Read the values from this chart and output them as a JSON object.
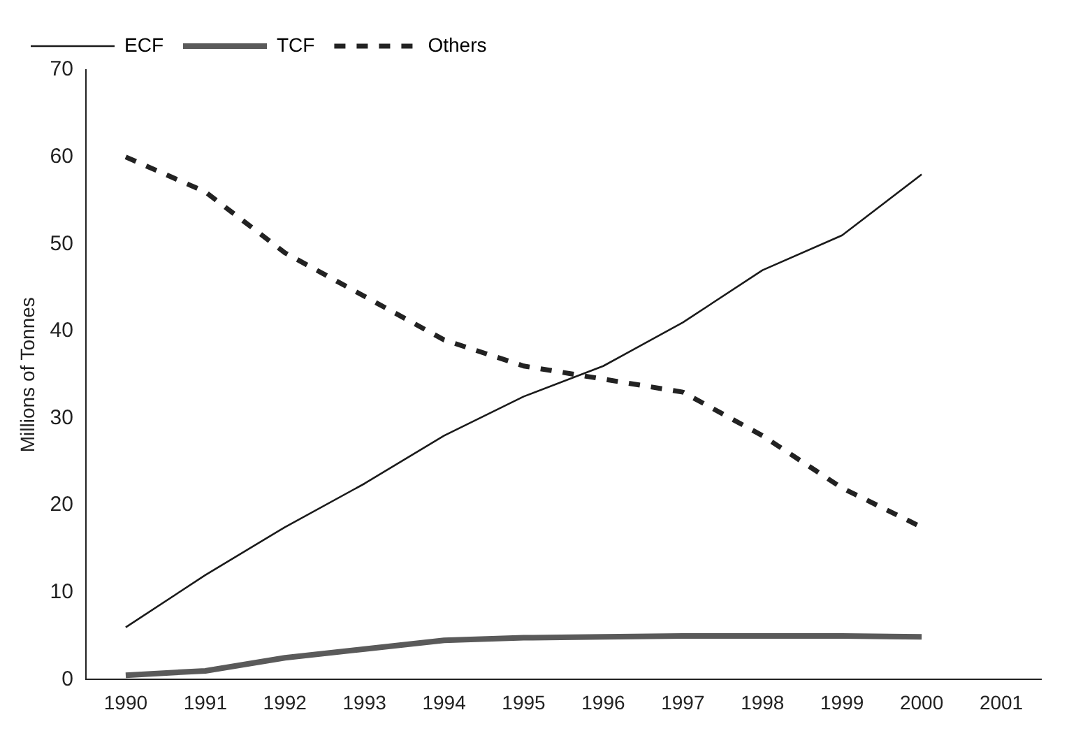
{
  "chart_data": {
    "type": "line",
    "ylabel": "Millions of Tonnes",
    "categories": [
      "1990",
      "1991",
      "1992",
      "1993",
      "1994",
      "1995",
      "1996",
      "1997",
      "1998",
      "1999",
      "2000",
      "2001"
    ],
    "ylim": [
      0,
      70
    ],
    "yticks": [
      0,
      10,
      20,
      30,
      40,
      50,
      60,
      70
    ],
    "grid": false,
    "legend": "top left",
    "marker": "none",
    "series": [
      {
        "name": "ECF",
        "color": "#1a1a1a",
        "line_style": "solid",
        "values": [
          6,
          12,
          17.5,
          22.5,
          28,
          32.5,
          36,
          41,
          47,
          51,
          58,
          null
        ]
      },
      {
        "name": "TCF",
        "color": "#5a5a5a",
        "line_style": "solid",
        "values": [
          0.5,
          1,
          2.5,
          3.5,
          4.5,
          4.8,
          4.9,
          5,
          5,
          5,
          4.9,
          null
        ]
      },
      {
        "name": "Others",
        "color": "#222222",
        "line_style": "dashed",
        "values": [
          60,
          56,
          49,
          44,
          39,
          36,
          34.5,
          33,
          28,
          22,
          17.5,
          null
        ]
      }
    ]
  }
}
